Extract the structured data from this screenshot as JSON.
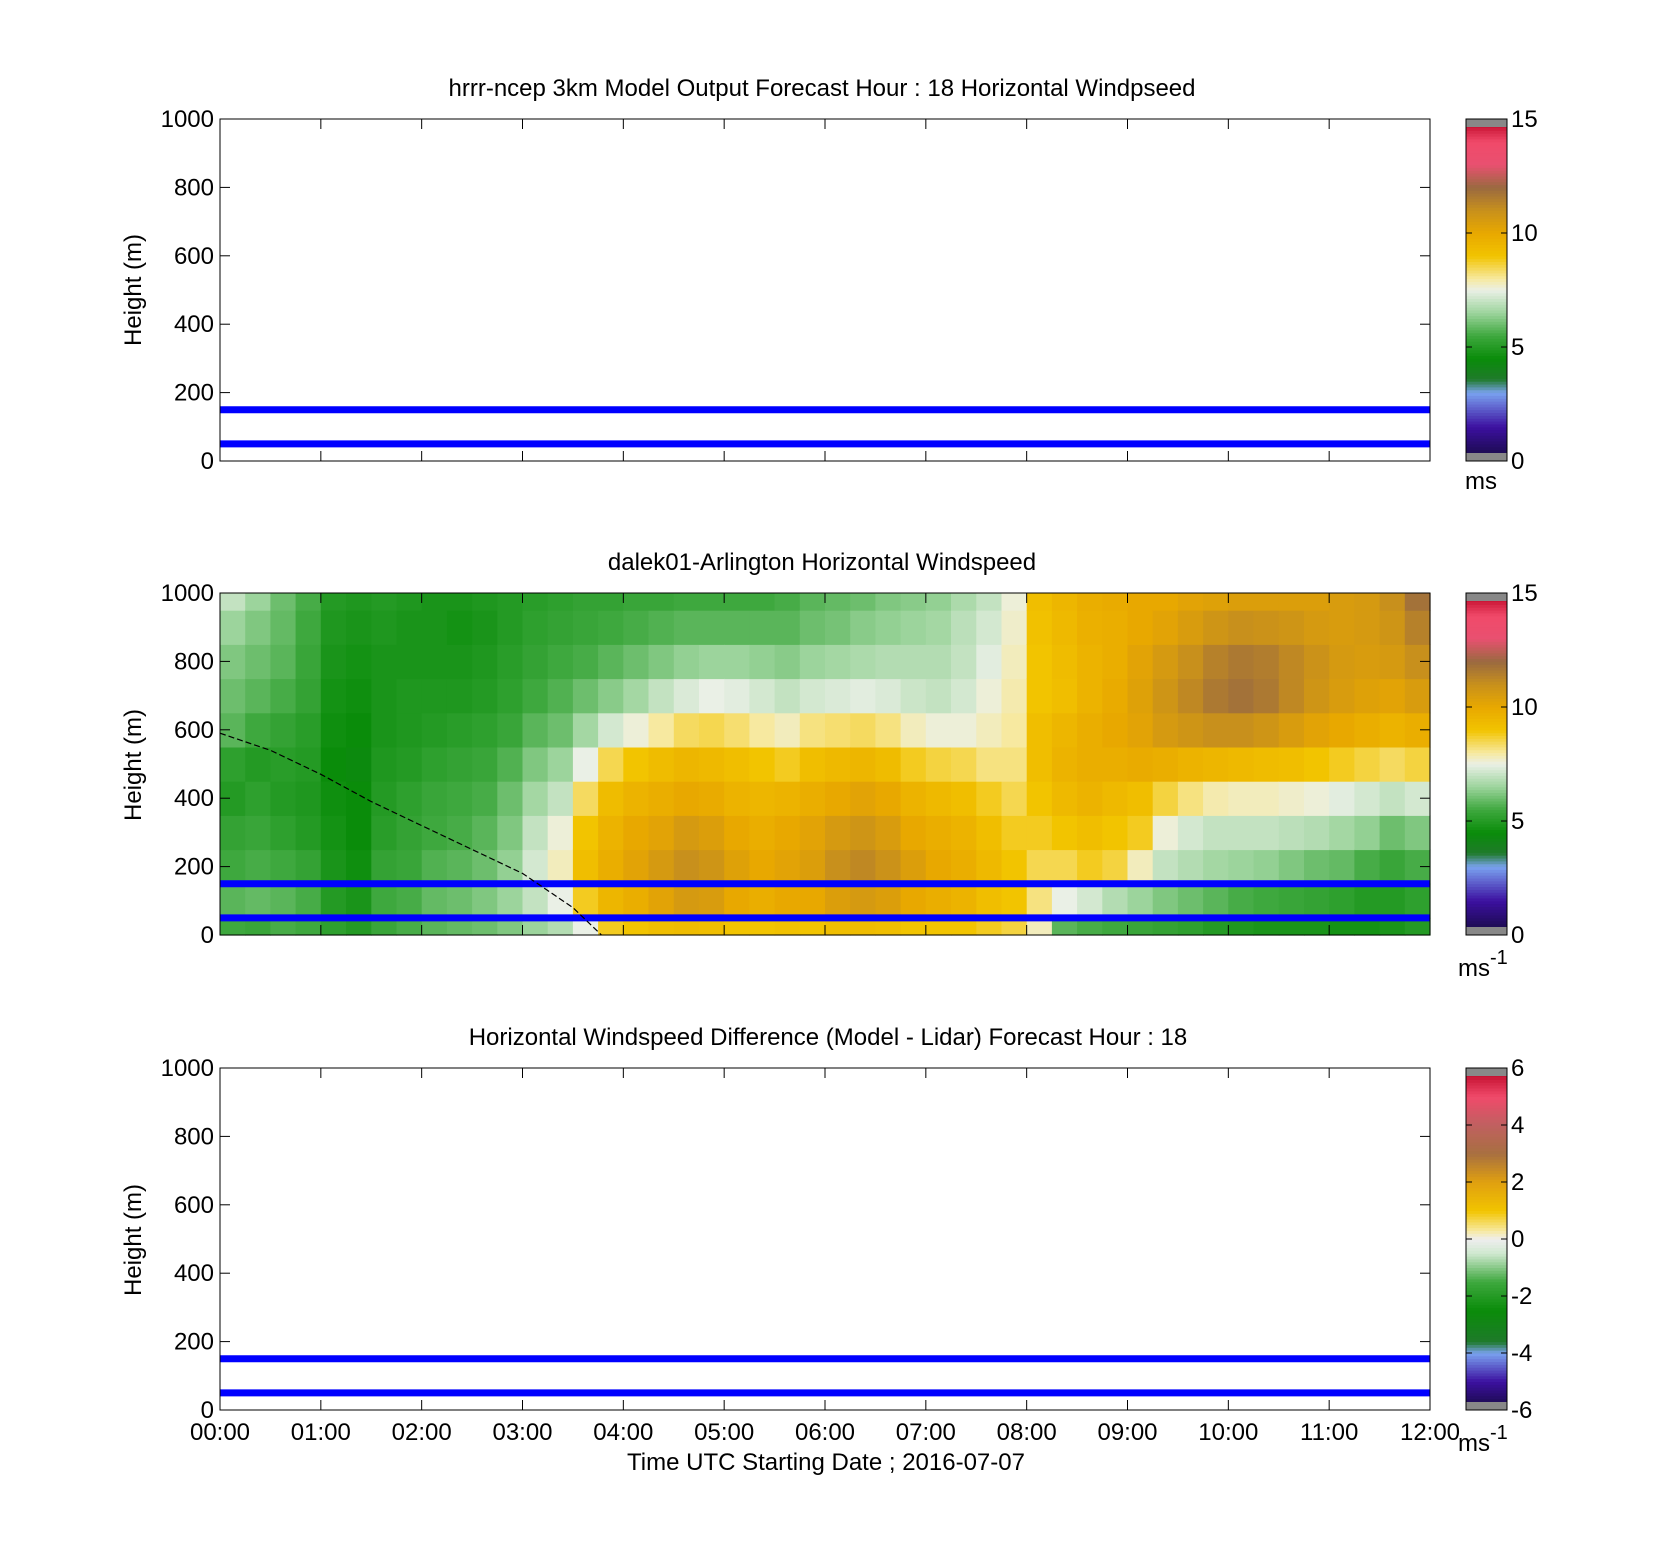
{
  "figure": {
    "xlabel": "Time UTC  Starting Date ; 2016-07-07",
    "x_ticks": [
      "00:00",
      "01:00",
      "02:00",
      "03:00",
      "04:00",
      "05:00",
      "06:00",
      "07:00",
      "08:00",
      "09:00",
      "10:00",
      "11:00",
      "12:00"
    ]
  },
  "colors": {
    "reference_lines": "#0000ff",
    "mixed_layer_trace": "#000000",
    "speed_colormap": [
      {
        "v": 0,
        "c": "#140a3c"
      },
      {
        "v": 1.5,
        "c": "#3c10a0"
      },
      {
        "v": 3,
        "c": "#7aa2f0"
      },
      {
        "v": 3.6,
        "c": "#1f7a2a"
      },
      {
        "v": 4.5,
        "c": "#0a8c0a"
      },
      {
        "v": 5.5,
        "c": "#3ea83e"
      },
      {
        "v": 6.5,
        "c": "#9cd49c"
      },
      {
        "v": 7.5,
        "c": "#eaf0e6"
      },
      {
        "v": 8,
        "c": "#f7e9a0"
      },
      {
        "v": 9,
        "c": "#f2c400"
      },
      {
        "v": 10,
        "c": "#e8a800"
      },
      {
        "v": 11,
        "c": "#c8901c"
      },
      {
        "v": 12,
        "c": "#9a6a40"
      },
      {
        "v": 13,
        "c": "#e85070"
      },
      {
        "v": 14,
        "c": "#f04a6a"
      },
      {
        "v": 15,
        "c": "#b80020"
      }
    ],
    "diff_colormap": [
      {
        "v": -6,
        "c": "#140a3c"
      },
      {
        "v": -5,
        "c": "#3c10a0"
      },
      {
        "v": -4,
        "c": "#7aa2f0"
      },
      {
        "v": -3.6,
        "c": "#1f7a2a"
      },
      {
        "v": -2.5,
        "c": "#0a8c0a"
      },
      {
        "v": -1.5,
        "c": "#3ea83e"
      },
      {
        "v": -0.5,
        "c": "#cfe8cf"
      },
      {
        "v": 0,
        "c": "#eeeeee"
      },
      {
        "v": 0.3,
        "c": "#f7e9a0"
      },
      {
        "v": 1,
        "c": "#f2c400"
      },
      {
        "v": 2,
        "c": "#e0a010"
      },
      {
        "v": 3,
        "c": "#a87040"
      },
      {
        "v": 4,
        "c": "#c06060"
      },
      {
        "v": 5,
        "c": "#f04a6a"
      },
      {
        "v": 6,
        "c": "#b80020"
      }
    ]
  },
  "chart_data": [
    {
      "type": "heatmap",
      "title": "hrrr-ncep 3km Model Output   Forecast Hour : 18 Horizontal Windpseed",
      "ylabel": "Height (m)",
      "ylim": [
        0,
        1000
      ],
      "y_ticks": [
        "0",
        "200",
        "400",
        "600",
        "800",
        "1000"
      ],
      "xlim": [
        "00:00",
        "12:00"
      ],
      "reference_lines_m": [
        50,
        150
      ],
      "colorbar": {
        "range": [
          0,
          15
        ],
        "ticks": [
          "0",
          "5",
          "10",
          "15"
        ],
        "unit": "ms",
        "unit_sup": ""
      },
      "values": []
    },
    {
      "type": "heatmap",
      "title": "dalek01-Arlington  Horizontal Windspeed",
      "ylabel": "Height (m)",
      "ylim": [
        0,
        1000
      ],
      "y_ticks": [
        "0",
        "200",
        "400",
        "600",
        "800",
        "1000"
      ],
      "xlim": [
        "00:00",
        "12:00"
      ],
      "reference_lines_m": [
        50,
        150
      ],
      "colorbar": {
        "range": [
          0,
          15
        ],
        "ticks": [
          "0",
          "5",
          "10",
          "15"
        ],
        "unit": "ms",
        "unit_sup": "-1"
      },
      "time_columns": [
        "00:00",
        "00:15",
        "00:30",
        "00:45",
        "01:00",
        "01:15",
        "01:30",
        "01:45",
        "02:00",
        "02:15",
        "02:30",
        "02:45",
        "03:00",
        "03:15",
        "03:30",
        "03:45",
        "04:00",
        "04:15",
        "04:30",
        "04:45",
        "05:00",
        "05:15",
        "05:30",
        "05:45",
        "06:00",
        "06:15",
        "06:30",
        "06:45",
        "07:00",
        "07:15",
        "07:30",
        "07:45",
        "08:00",
        "08:15",
        "08:30",
        "08:45",
        "09:00",
        "09:15",
        "09:30",
        "09:45",
        "10:00",
        "10:15",
        "10:30",
        "10:45",
        "11:00",
        "11:15",
        "11:30",
        "11:45"
      ],
      "height_rows_m": [
        0,
        100,
        200,
        300,
        400,
        500,
        600,
        700,
        800,
        900,
        1000
      ],
      "values": [
        [
          5.5,
          5.8,
          5.5,
          5.3,
          5.0,
          5.2,
          5.8,
          6.0,
          6.2,
          6.5,
          7.0
        ],
        [
          5.4,
          5.9,
          5.6,
          5.4,
          5.2,
          5.0,
          5.5,
          5.8,
          6.0,
          6.2,
          6.5
        ],
        [
          5.6,
          5.8,
          5.5,
          5.2,
          5.0,
          5.1,
          5.3,
          5.6,
          5.8,
          5.9,
          6.0
        ],
        [
          5.5,
          5.6,
          5.3,
          5.0,
          4.9,
          5.0,
          5.1,
          5.3,
          5.4,
          5.5,
          5.6
        ],
        [
          5.2,
          5.0,
          4.8,
          4.7,
          4.6,
          4.5,
          4.6,
          4.7,
          4.8,
          4.9,
          5.0
        ],
        [
          5.0,
          4.8,
          4.6,
          4.5,
          4.5,
          4.4,
          4.5,
          4.6,
          4.7,
          4.8,
          4.9
        ],
        [
          5.4,
          5.5,
          5.3,
          5.1,
          5.0,
          4.9,
          4.8,
          4.8,
          4.8,
          4.9,
          5.0
        ],
        [
          5.6,
          5.6,
          5.4,
          5.3,
          5.2,
          5.0,
          4.9,
          4.9,
          4.8,
          4.8,
          4.9
        ],
        [
          5.8,
          5.9,
          5.7,
          5.5,
          5.4,
          5.2,
          5.0,
          4.9,
          4.8,
          4.8,
          4.8
        ],
        [
          5.9,
          6.0,
          5.8,
          5.6,
          5.5,
          5.3,
          5.1,
          4.9,
          4.8,
          4.7,
          4.8
        ],
        [
          6.0,
          6.2,
          6.0,
          5.8,
          5.6,
          5.4,
          5.2,
          5.0,
          4.9,
          4.8,
          4.9
        ],
        [
          6.2,
          6.5,
          6.4,
          6.2,
          6.0,
          5.7,
          5.4,
          5.2,
          5.1,
          5.0,
          5.0
        ],
        [
          6.5,
          7.0,
          7.2,
          7.0,
          6.6,
          6.2,
          5.8,
          5.5,
          5.3,
          5.2,
          5.1
        ],
        [
          6.8,
          7.5,
          7.8,
          7.6,
          7.0,
          6.5,
          6.0,
          5.7,
          5.5,
          5.3,
          5.2
        ],
        [
          7.5,
          8.8,
          9.2,
          9.0,
          8.4,
          7.5,
          6.6,
          6.0,
          5.6,
          5.4,
          5.3
        ],
        [
          8.8,
          9.5,
          9.8,
          9.6,
          9.3,
          8.5,
          7.2,
          6.3,
          5.8,
          5.5,
          5.3
        ],
        [
          9.0,
          9.8,
          10.2,
          10.0,
          9.6,
          9.0,
          7.6,
          6.6,
          6.0,
          5.6,
          5.4
        ],
        [
          9.2,
          10.2,
          10.6,
          10.2,
          9.8,
          9.3,
          8.0,
          7.0,
          6.2,
          5.7,
          5.4
        ],
        [
          9.3,
          10.6,
          11.0,
          10.6,
          10.0,
          9.5,
          8.4,
          7.3,
          6.4,
          5.8,
          5.5
        ],
        [
          9.2,
          10.5,
          10.8,
          10.4,
          9.9,
          9.4,
          8.5,
          7.5,
          6.5,
          5.8,
          5.5
        ],
        [
          9.0,
          10.0,
          10.3,
          10.0,
          9.6,
          9.2,
          8.3,
          7.4,
          6.5,
          5.8,
          5.5
        ],
        [
          9.0,
          9.8,
          10.0,
          9.8,
          9.5,
          9.0,
          8.0,
          7.2,
          6.4,
          5.8,
          5.5
        ],
        [
          9.1,
          10.0,
          10.2,
          10.0,
          9.6,
          8.8,
          7.8,
          7.0,
          6.3,
          5.8,
          5.6
        ],
        [
          9.0,
          10.0,
          10.4,
          10.2,
          9.8,
          9.2,
          8.2,
          7.2,
          6.5,
          6.0,
          5.8
        ],
        [
          9.2,
          10.4,
          11.0,
          10.6,
          10.0,
          9.4,
          8.3,
          7.3,
          6.6,
          6.1,
          5.9
        ],
        [
          9.3,
          10.6,
          11.2,
          10.8,
          10.2,
          9.5,
          8.4,
          7.4,
          6.7,
          6.3,
          6.0
        ],
        [
          9.2,
          10.4,
          10.9,
          10.5,
          10.0,
          9.3,
          8.2,
          7.3,
          6.8,
          6.4,
          6.2
        ],
        [
          9.0,
          10.0,
          10.4,
          10.0,
          9.6,
          8.8,
          7.8,
          7.1,
          6.8,
          6.5,
          6.3
        ],
        [
          9.0,
          9.8,
          10.0,
          9.8,
          9.4,
          8.6,
          7.6,
          7.0,
          6.8,
          6.6,
          6.4
        ],
        [
          9.0,
          9.6,
          9.8,
          9.6,
          9.2,
          8.5,
          7.6,
          7.2,
          7.0,
          6.9,
          6.7
        ],
        [
          8.8,
          9.2,
          9.4,
          9.2,
          8.8,
          8.2,
          7.8,
          7.6,
          7.4,
          7.2,
          7.0
        ],
        [
          8.6,
          9.0,
          9.0,
          8.8,
          8.5,
          8.2,
          8.0,
          7.9,
          7.8,
          7.7,
          7.6
        ],
        [
          7.8,
          8.2,
          8.5,
          8.8,
          9.0,
          9.2,
          9.2,
          9.0,
          9.0,
          9.1,
          9.2
        ],
        [
          5.8,
          7.5,
          8.5,
          9.0,
          9.4,
          9.6,
          9.5,
          9.2,
          9.3,
          9.4,
          9.5
        ],
        [
          5.6,
          7.2,
          8.8,
          9.2,
          9.6,
          9.8,
          9.8,
          9.6,
          9.6,
          9.7,
          9.8
        ],
        [
          5.5,
          6.8,
          8.6,
          9.0,
          9.4,
          9.8,
          10.0,
          9.9,
          9.8,
          9.8,
          9.9
        ],
        [
          5.4,
          6.5,
          7.8,
          8.8,
          9.2,
          9.9,
          10.2,
          10.3,
          10.2,
          10.0,
          10.0
        ],
        [
          5.3,
          6.2,
          7.0,
          7.6,
          8.6,
          9.8,
          10.6,
          10.8,
          10.6,
          10.2,
          10.0
        ],
        [
          5.2,
          6.0,
          6.8,
          7.2,
          8.2,
          9.6,
          10.8,
          11.2,
          11.0,
          10.5,
          10.2
        ],
        [
          5.0,
          5.8,
          6.6,
          7.0,
          7.9,
          9.5,
          11.0,
          11.6,
          11.4,
          10.8,
          10.3
        ],
        [
          4.9,
          5.6,
          6.5,
          7.0,
          7.8,
          9.4,
          11.0,
          11.8,
          11.6,
          11.0,
          10.4
        ],
        [
          4.8,
          5.5,
          6.4,
          7.0,
          7.8,
          9.3,
          10.8,
          11.6,
          11.5,
          10.9,
          10.4
        ],
        [
          4.8,
          5.4,
          6.2,
          6.9,
          7.7,
          9.2,
          10.5,
          11.2,
          11.2,
          10.8,
          10.4
        ],
        [
          4.8,
          5.3,
          6.0,
          6.8,
          7.6,
          9.0,
          10.2,
          10.8,
          10.9,
          10.6,
          10.4
        ],
        [
          4.7,
          5.2,
          5.9,
          6.6,
          7.4,
          8.8,
          10.0,
          10.5,
          10.6,
          10.5,
          10.5
        ],
        [
          4.7,
          5.0,
          5.6,
          6.4,
          7.2,
          8.6,
          9.8,
          10.3,
          10.5,
          10.6,
          10.6
        ],
        [
          4.8,
          5.0,
          5.4,
          6.0,
          7.0,
          8.4,
          9.6,
          10.2,
          10.6,
          10.8,
          11.0
        ],
        [
          5.0,
          5.2,
          5.6,
          6.2,
          7.2,
          8.6,
          9.8,
          10.5,
          11.0,
          11.4,
          11.8
        ]
      ],
      "mixed_layer_height": {
        "x": [
          "00:00",
          "00:30",
          "01:00",
          "01:30",
          "02:00",
          "02:30",
          "03:00",
          "03:30",
          "03:47"
        ],
        "y": [
          590,
          540,
          470,
          390,
          320,
          250,
          180,
          80,
          0
        ]
      }
    },
    {
      "type": "heatmap",
      "title": "Horizontal Windspeed Difference (Model - Lidar) Forecast Hour : 18",
      "ylabel": "Height (m)",
      "ylim": [
        0,
        1000
      ],
      "y_ticks": [
        "0",
        "200",
        "400",
        "600",
        "800",
        "1000"
      ],
      "xlim": [
        "00:00",
        "12:00"
      ],
      "reference_lines_m": [
        50,
        150
      ],
      "colorbar": {
        "range": [
          -6,
          6
        ],
        "ticks": [
          "-6",
          "-4",
          "-2",
          "0",
          "2",
          "4",
          "6"
        ],
        "unit": "ms",
        "unit_sup": "-1"
      },
      "values": []
    }
  ]
}
